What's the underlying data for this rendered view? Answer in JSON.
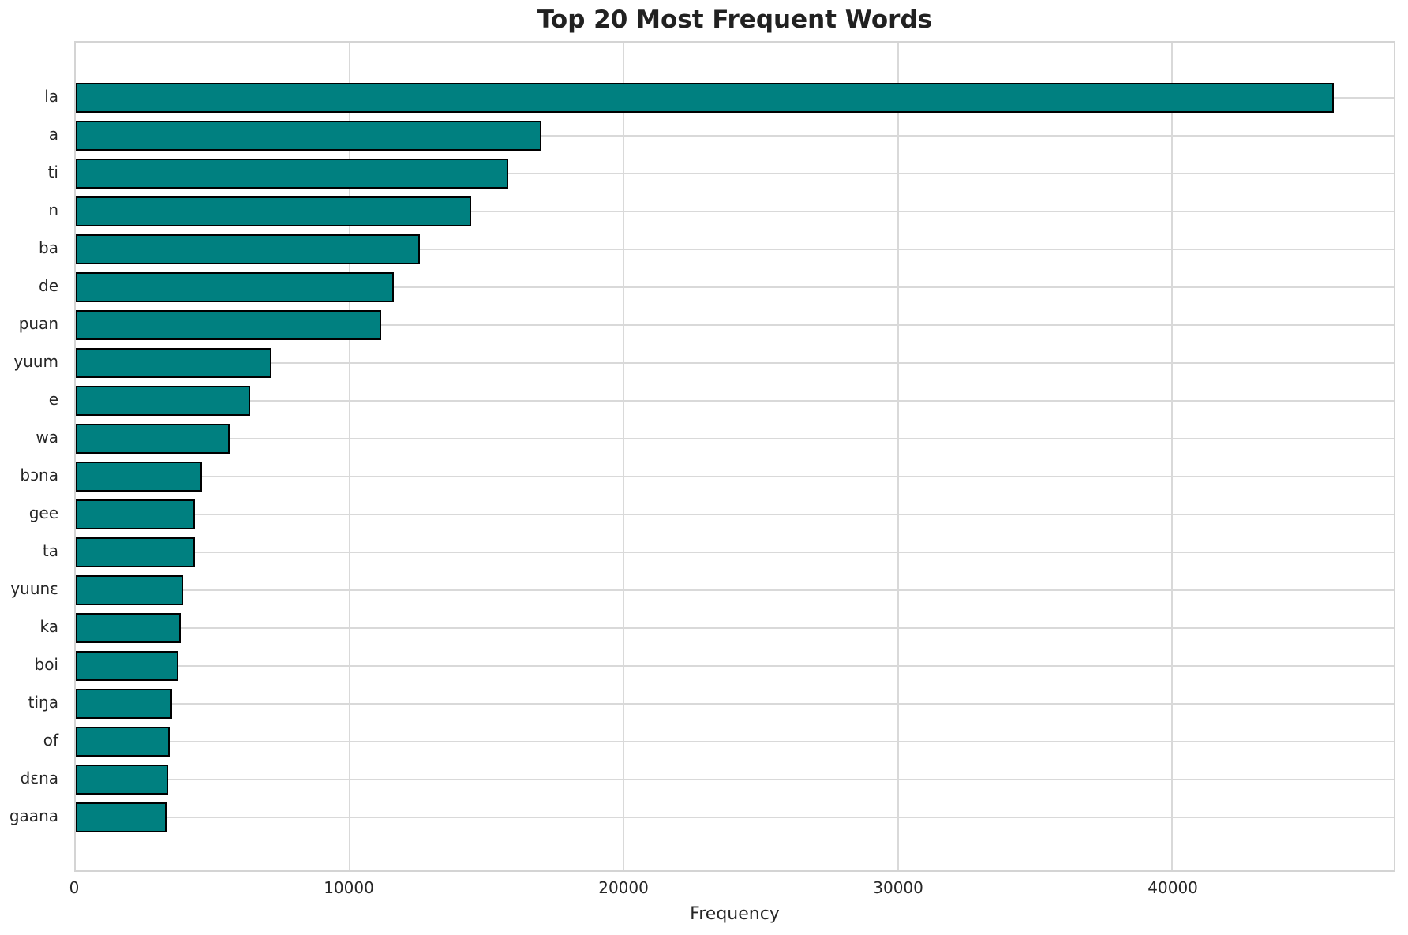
{
  "title": "Top 20 Most Frequent Words",
  "colors": {
    "bar_fill": "#008080",
    "bar_edge": "#000000",
    "grid": "#d9d9d9",
    "spine": "#d4d4d4",
    "text": "#262626",
    "background": "#ffffff"
  },
  "chart_data": {
    "type": "bar",
    "orientation": "horizontal",
    "title": "Top 20 Most Frequent Words",
    "xlabel": "Frequency",
    "ylabel": "",
    "grid": true,
    "legend": false,
    "xlim": [
      0,
      48100
    ],
    "x_ticks": [
      0,
      10000,
      20000,
      30000,
      40000
    ],
    "categories": [
      "la",
      "a",
      "ti",
      "n",
      "ba",
      "de",
      "puan",
      "yuum",
      "e",
      "wa",
      "bɔna",
      "gee",
      "ta",
      "yuunɛ",
      "ka",
      "boi",
      "tiŋa",
      "of",
      "dɛna",
      "gaana"
    ],
    "values": [
      45910,
      16990,
      15770,
      14430,
      12550,
      11600,
      11140,
      7150,
      6370,
      5610,
      4610,
      4360,
      4350,
      3910,
      3840,
      3750,
      3510,
      3430,
      3360,
      3310
    ]
  }
}
